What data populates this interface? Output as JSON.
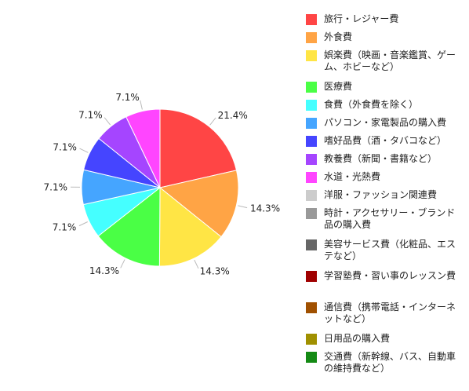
{
  "chart_data": {
    "type": "pie",
    "slices": [
      {
        "label": "旅行・レジャー費",
        "value": 21.4,
        "display": "21.4%",
        "color": "#ff4545"
      },
      {
        "label": "外食費",
        "value": 14.3,
        "display": "14.3%",
        "color": "#ffa445"
      },
      {
        "label": "娯楽費（映画・音楽鑑賞、ゲーム、ホビーなど）",
        "value": 14.3,
        "display": "14.3%",
        "color": "#ffe545"
      },
      {
        "label": "医療費",
        "value": 14.3,
        "display": "14.3%",
        "color": "#4aff45"
      },
      {
        "label": "食費（外食費を除く）",
        "value": 7.1,
        "display": "7.1%",
        "color": "#45ffff"
      },
      {
        "label": "パソコン・家電製品の購入費",
        "value": 7.1,
        "display": "7.1%",
        "color": "#45a5ff"
      },
      {
        "label": "嗜好品費（酒・タバコなど）",
        "value": 7.1,
        "display": "7.1%",
        "color": "#4545ff"
      },
      {
        "label": "教養費（新聞・書籍など）",
        "value": 7.1,
        "display": "7.1%",
        "color": "#a545ff"
      },
      {
        "label": "水道・光熱費",
        "value": 7.1,
        "display": "7.1%",
        "color": "#ff45ff"
      },
      {
        "label": "洋服・ファッション関連費",
        "value": 0,
        "display": "",
        "color": "#cccccc"
      },
      {
        "label": "時計・アクセサリー・ブランド品の購入費",
        "value": 0,
        "display": "",
        "color": "#999999"
      },
      {
        "label": "美容サービス費（化粧品、エステなど）",
        "value": 0,
        "display": "",
        "color": "#666666"
      },
      {
        "label": "学習塾費・習い事のレッスン費",
        "value": 0,
        "display": "",
        "color": "#a00000"
      },
      {
        "label": "通信費（携帯電話・インターネットなど）",
        "value": 0,
        "display": "",
        "color": "#a05000"
      },
      {
        "label": "日用品の購入費",
        "value": 0,
        "display": "",
        "color": "#a09000"
      },
      {
        "label": "交通費（新幹線、バス、自動車の維持費など）",
        "value": 0,
        "display": "",
        "color": "#148a14"
      }
    ],
    "legend_position": "right"
  }
}
